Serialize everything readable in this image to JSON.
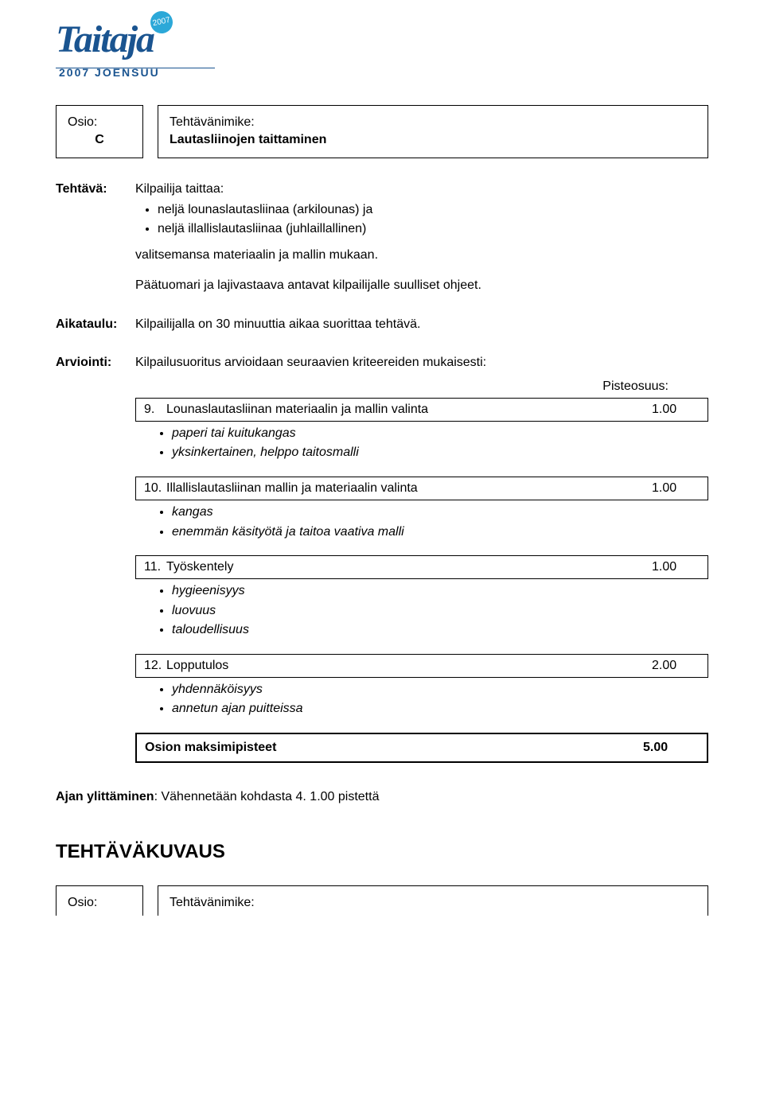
{
  "logo": {
    "main": "Taitaja",
    "badge": "2007",
    "sub": "2007 JOENSUU"
  },
  "osio": {
    "label": "Osio:",
    "value": "C"
  },
  "tehtavanimike": {
    "label": "Tehtävänimike:",
    "value": "Lautasliinojen taittaminen"
  },
  "tehtava": {
    "label": "Tehtävä:",
    "intro": "Kilpailija taittaa:",
    "bullets": [
      "neljä lounaslautasliinaa (arkilounas) ja",
      "neljä illallislautasliinaa (juhlaillallinen)"
    ],
    "line2": "valitsemansa materiaalin ja mallin mukaan.",
    "line3": "Päätuomari ja lajivastaava antavat kilpailijalle suulliset ohjeet."
  },
  "aikataulu": {
    "label": "Aikataulu:",
    "text": "Kilpailijalla on 30 minuuttia aikaa suorittaa tehtävä."
  },
  "arviointi": {
    "label": "Arviointi:",
    "intro": "Kilpailusuoritus arvioidaan seuraavien kriteereiden mukaisesti:",
    "pisteosuus_label": "Pisteosuus:"
  },
  "criteria": [
    {
      "num": "9.",
      "title": "Lounaslautasliinan materiaalin ja mallin valinta",
      "score": "1.00",
      "items": [
        "paperi tai kuitukangas",
        "yksinkertainen, helppo taitosmalli"
      ]
    },
    {
      "num": "10.",
      "title": "Illallislautasliinan mallin ja materiaalin valinta",
      "score": "1.00",
      "items": [
        "kangas",
        "enemmän käsityötä ja taitoa vaativa malli"
      ]
    },
    {
      "num": "11.",
      "title": "Työskentely",
      "score": "1.00",
      "items": [
        "hygieenisyys",
        "luovuus",
        "taloudellisuus"
      ]
    },
    {
      "num": "12.",
      "title": "Lopputulos",
      "score": "2.00",
      "items": [
        "yhdennäköisyys",
        "annetun ajan puitteissa"
      ]
    }
  ],
  "maksimi": {
    "label": "Osion maksimipisteet",
    "score": "5.00"
  },
  "ajan": {
    "label": "Ajan ylittäminen",
    "text": ": Vähennetään kohdasta 4. 1.00 pistettä"
  },
  "tehtavakuvaus": "TEHTÄVÄKUVAUS",
  "bottom": {
    "osio_label": "Osio:",
    "tn_label": "Tehtävänimike:"
  }
}
